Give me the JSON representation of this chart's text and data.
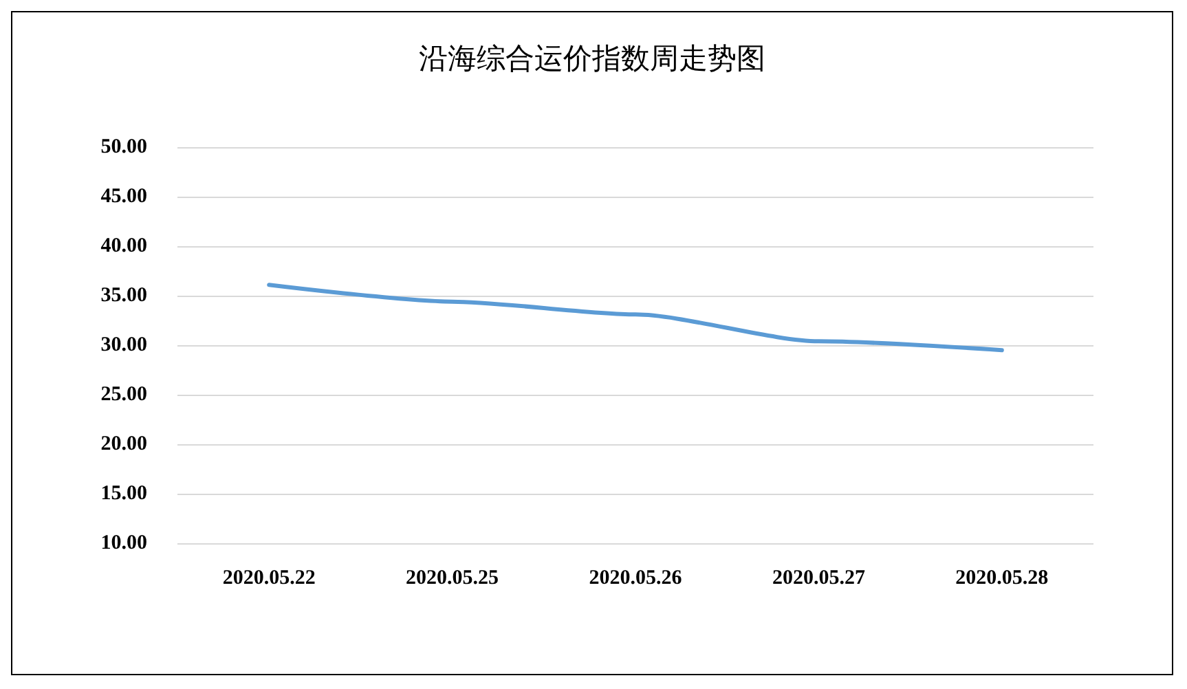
{
  "chart_data": {
    "type": "line",
    "title": "沿海综合运价指数周走势图",
    "categories": [
      "2020.05.22",
      "2020.05.25",
      "2020.05.26",
      "2020.05.27",
      "2020.05.28"
    ],
    "series": [
      {
        "color": "#5b9bd5",
        "values": [
          36.1,
          34.4,
          33.1,
          30.4,
          29.5
        ]
      }
    ],
    "ylim": [
      10,
      50
    ],
    "yticks": [
      {
        "value": 10,
        "label": "10.00"
      },
      {
        "value": 15,
        "label": "15.00"
      },
      {
        "value": 20,
        "label": "20.00"
      },
      {
        "value": 25,
        "label": "25.00"
      },
      {
        "value": 30,
        "label": "30.00"
      },
      {
        "value": 35,
        "label": "35.00"
      },
      {
        "value": 40,
        "label": "40.00"
      },
      {
        "value": 45,
        "label": "45.00"
      },
      {
        "value": 50,
        "label": "50.00"
      }
    ],
    "grid": "y",
    "marker": "none",
    "line_style": "solid"
  }
}
